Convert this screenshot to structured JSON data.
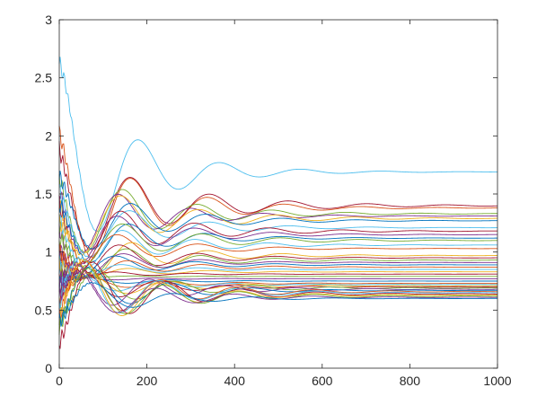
{
  "chart_data": {
    "type": "line",
    "title": "",
    "xlabel": "",
    "ylabel": "",
    "xlim": [
      0,
      1000
    ],
    "ylim": [
      0,
      3
    ],
    "xticks": [
      0,
      200,
      400,
      600,
      800,
      1000
    ],
    "yticks": [
      0,
      0.5,
      1,
      1.5,
      2,
      2.5,
      3
    ],
    "xtick_labels": [
      "0",
      "200",
      "400",
      "600",
      "800",
      "1000"
    ],
    "ytick_labels": [
      "0",
      "0.5",
      "1",
      "1.5",
      "2",
      "2.5",
      "3"
    ],
    "grid": false,
    "legend": "none",
    "series_count": 40,
    "model": "damped oscillation: y(t) = s + (a - s) * exp(-t/tau) * cos(2*pi*t/period + phase), plus a small fast ripple near t = 0",
    "series": [
      {
        "start": 2.62,
        "steady": 1.69,
        "period": 185,
        "tau": 150,
        "phase": 0.0,
        "color": "#4DBEEE"
      },
      {
        "start": 2.05,
        "steady": 1.38,
        "period": 175,
        "tau": 170,
        "phase": 0.3,
        "color": "#D95319"
      },
      {
        "start": 1.95,
        "steady": 1.4,
        "period": 180,
        "tau": 200,
        "phase": 0.5,
        "color": "#A2142F"
      },
      {
        "start": 1.8,
        "steady": 1.33,
        "period": 170,
        "tau": 180,
        "phase": 0.8,
        "color": "#77AC30"
      },
      {
        "start": 1.75,
        "steady": 1.31,
        "period": 165,
        "tau": 160,
        "phase": 1.0,
        "color": "#7E2F8E"
      },
      {
        "start": 1.7,
        "steady": 1.29,
        "period": 178,
        "tau": 190,
        "phase": 1.2,
        "color": "#EDB120"
      },
      {
        "start": 1.65,
        "steady": 1.27,
        "period": 172,
        "tau": 175,
        "phase": 0.2,
        "color": "#0072BD"
      },
      {
        "start": 1.6,
        "steady": 1.21,
        "period": 182,
        "tau": 165,
        "phase": 0.6,
        "color": "#4DBEEE"
      },
      {
        "start": 1.55,
        "steady": 1.18,
        "period": 168,
        "tau": 185,
        "phase": 0.9,
        "color": "#A2142F"
      },
      {
        "start": 1.5,
        "steady": 1.15,
        "period": 176,
        "tau": 170,
        "phase": 1.4,
        "color": "#7E2F8E"
      },
      {
        "start": 1.45,
        "steady": 1.12,
        "period": 174,
        "tau": 160,
        "phase": 0.4,
        "color": "#0072BD"
      },
      {
        "start": 1.4,
        "steady": 1.1,
        "period": 180,
        "tau": 195,
        "phase": 1.1,
        "color": "#77AC30"
      },
      {
        "start": 1.35,
        "steady": 1.06,
        "period": 166,
        "tau": 175,
        "phase": 0.7,
        "color": "#4DBEEE"
      },
      {
        "start": 1.3,
        "steady": 1.03,
        "period": 184,
        "tau": 165,
        "phase": 1.6,
        "color": "#D95319"
      },
      {
        "start": 1.25,
        "steady": 0.97,
        "period": 172,
        "tau": 180,
        "phase": 0.1,
        "color": "#EDB120"
      },
      {
        "start": 1.2,
        "steady": 0.95,
        "period": 178,
        "tau": 170,
        "phase": 1.3,
        "color": "#A2142F"
      },
      {
        "start": 1.15,
        "steady": 0.93,
        "period": 170,
        "tau": 190,
        "phase": 0.5,
        "color": "#77AC30"
      },
      {
        "start": 1.1,
        "steady": 0.91,
        "period": 176,
        "tau": 160,
        "phase": 0.9,
        "color": "#7E2F8E"
      },
      {
        "start": 1.05,
        "steady": 0.89,
        "period": 182,
        "tau": 175,
        "phase": 1.7,
        "color": "#0072BD"
      },
      {
        "start": 1.0,
        "steady": 0.87,
        "period": 168,
        "tau": 185,
        "phase": 0.3,
        "color": "#D95319"
      },
      {
        "start": 0.95,
        "steady": 0.85,
        "period": 174,
        "tau": 165,
        "phase": 1.0,
        "color": "#4DBEEE"
      },
      {
        "start": 0.9,
        "steady": 0.83,
        "period": 180,
        "tau": 180,
        "phase": 0.6,
        "color": "#EDB120"
      },
      {
        "start": 0.85,
        "steady": 0.81,
        "period": 172,
        "tau": 170,
        "phase": 1.5,
        "color": "#A2142F"
      },
      {
        "start": 0.8,
        "steady": 0.79,
        "period": 178,
        "tau": 190,
        "phase": 0.2,
        "color": "#77AC30"
      },
      {
        "start": 0.75,
        "steady": 0.77,
        "period": 166,
        "tau": 175,
        "phase": 1.2,
        "color": "#7E2F8E"
      },
      {
        "start": 0.7,
        "steady": 0.75,
        "period": 184,
        "tau": 160,
        "phase": 0.8,
        "color": "#0072BD"
      },
      {
        "start": 0.65,
        "steady": 0.73,
        "period": 170,
        "tau": 185,
        "phase": 0.4,
        "color": "#D95319"
      },
      {
        "start": 0.6,
        "steady": 0.72,
        "period": 176,
        "tau": 170,
        "phase": 1.4,
        "color": "#4DBEEE"
      },
      {
        "start": 0.55,
        "steady": 0.71,
        "period": 180,
        "tau": 180,
        "phase": 0.7,
        "color": "#EDB120"
      },
      {
        "start": 0.5,
        "steady": 0.7,
        "period": 172,
        "tau": 165,
        "phase": 1.1,
        "color": "#A2142F"
      },
      {
        "start": 0.45,
        "steady": 0.69,
        "period": 178,
        "tau": 190,
        "phase": 0.0,
        "color": "#77AC30"
      },
      {
        "start": 0.4,
        "steady": 0.68,
        "period": 168,
        "tau": 175,
        "phase": 1.6,
        "color": "#7E2F8E"
      },
      {
        "start": 0.35,
        "steady": 0.67,
        "period": 182,
        "tau": 160,
        "phase": 0.5,
        "color": "#0072BD"
      },
      {
        "start": 0.3,
        "steady": 0.66,
        "period": 174,
        "tau": 185,
        "phase": 0.9,
        "color": "#D95319"
      },
      {
        "start": 0.25,
        "steady": 0.65,
        "period": 180,
        "tau": 170,
        "phase": 1.3,
        "color": "#4DBEEE"
      },
      {
        "start": 0.22,
        "steady": 0.64,
        "period": 170,
        "tau": 180,
        "phase": 0.2,
        "color": "#A2142F"
      },
      {
        "start": 0.2,
        "steady": 0.63,
        "period": 176,
        "tau": 165,
        "phase": 1.0,
        "color": "#EDB120"
      },
      {
        "start": 0.28,
        "steady": 0.62,
        "period": 172,
        "tau": 190,
        "phase": 0.6,
        "color": "#77AC30"
      },
      {
        "start": 0.33,
        "steady": 0.61,
        "period": 178,
        "tau": 175,
        "phase": 1.5,
        "color": "#7E2F8E"
      },
      {
        "start": 0.38,
        "steady": 0.6,
        "period": 184,
        "tau": 160,
        "phase": 0.4,
        "color": "#0072BD"
      }
    ]
  }
}
